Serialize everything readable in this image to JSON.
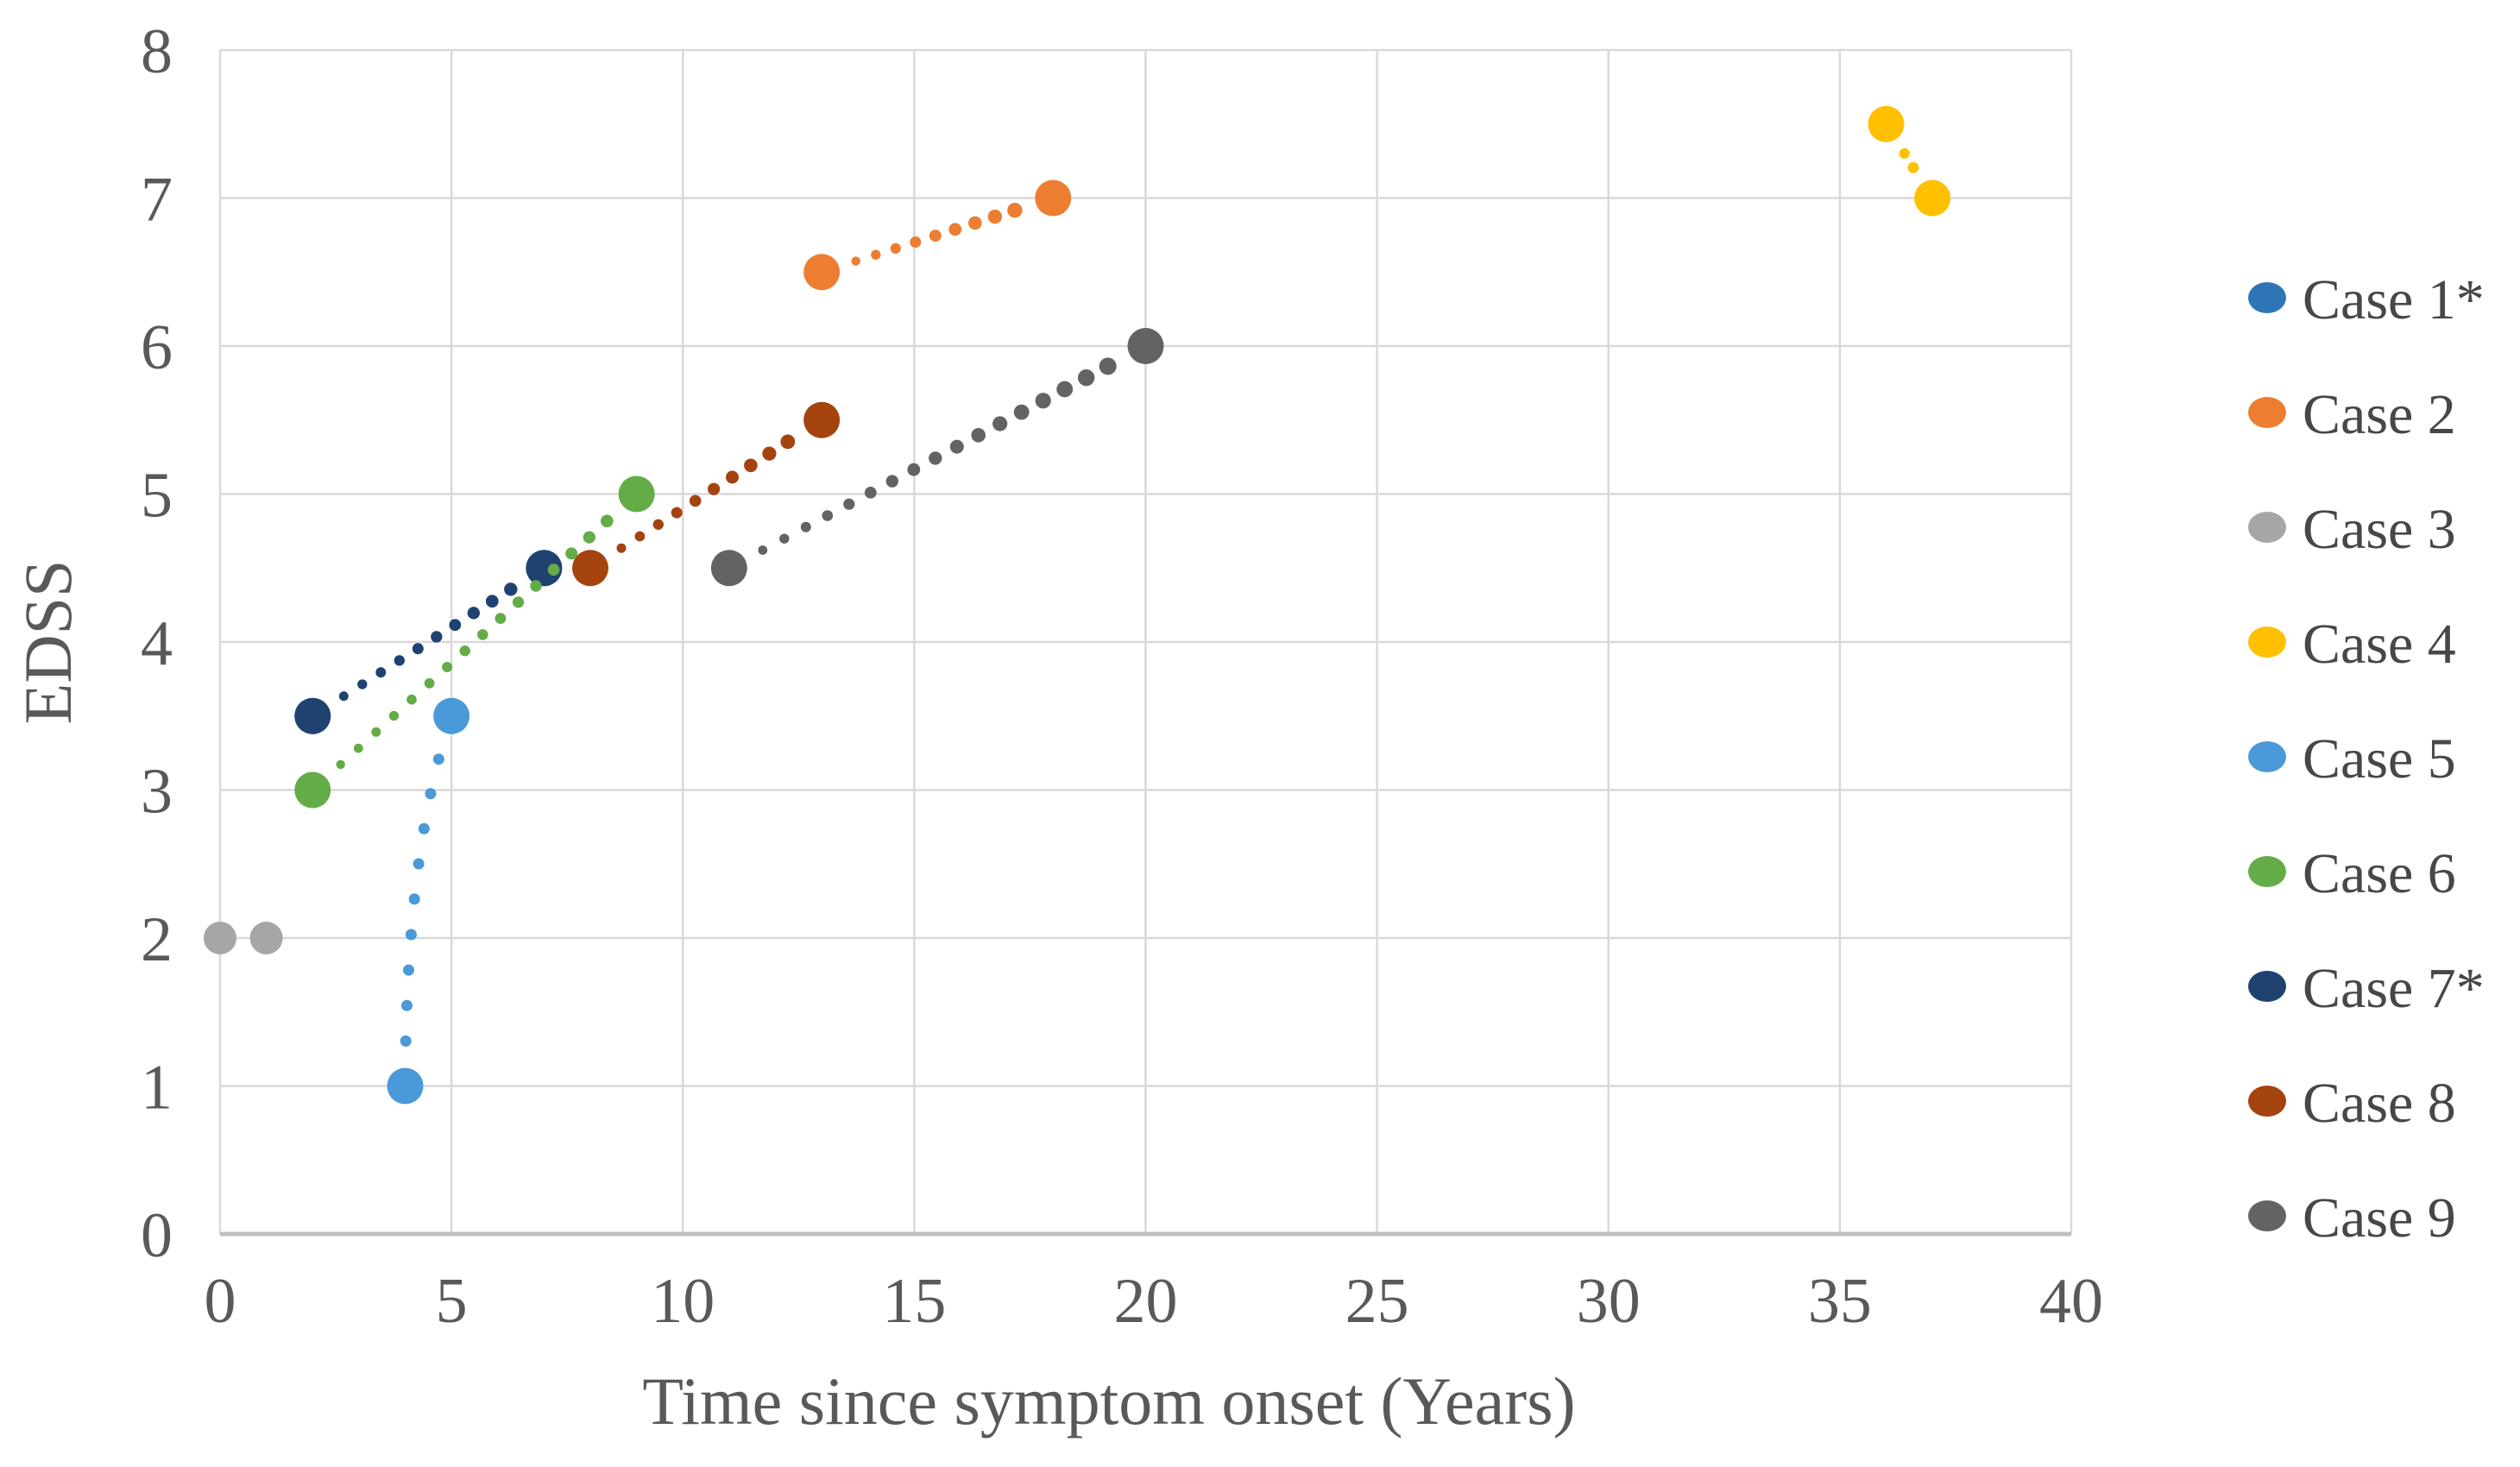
{
  "chart_data": {
    "type": "scatter",
    "title": "",
    "xlabel": "Time since symptom onset (Years)",
    "ylabel": "EDSS",
    "xlim": [
      0,
      40
    ],
    "ylim": [
      0,
      8
    ],
    "x_ticks": [
      0,
      5,
      10,
      15,
      20,
      25,
      30,
      35,
      40
    ],
    "y_ticks": [
      0,
      1,
      2,
      3,
      4,
      5,
      6,
      7,
      8
    ],
    "grid": true,
    "legend_position": "right",
    "line_style": "dotted",
    "marker": "circle",
    "series": [
      {
        "name": "Case 1*",
        "color": "#2E75B6",
        "points": [
          [
            2,
            3.5
          ],
          [
            7,
            4.5
          ]
        ],
        "note": "coincides with Case 7* and is hidden beneath it"
      },
      {
        "name": "Case 2",
        "color": "#ED7D31",
        "points": [
          [
            13,
            6.5
          ],
          [
            18,
            7
          ]
        ]
      },
      {
        "name": "Case 3",
        "color": "#A6A6A6",
        "points": [
          [
            0,
            2
          ],
          [
            1,
            2
          ]
        ]
      },
      {
        "name": "Case 4",
        "color": "#FFC000",
        "points": [
          [
            36,
            7.5
          ],
          [
            37,
            7
          ]
        ]
      },
      {
        "name": "Case 5",
        "color": "#4A99D9",
        "points": [
          [
            4,
            1
          ],
          [
            5,
            3.5
          ]
        ],
        "curve_control": [
          4.02,
          2.6
        ]
      },
      {
        "name": "Case 6",
        "color": "#64AC47",
        "points": [
          [
            2,
            3
          ],
          [
            9,
            5
          ]
        ]
      },
      {
        "name": "Case 7*",
        "color": "#1F4270",
        "points": [
          [
            2,
            3.5
          ],
          [
            7,
            4.5
          ]
        ]
      },
      {
        "name": "Case 8",
        "color": "#A5430F",
        "points": [
          [
            8,
            4.5
          ],
          [
            13,
            5.5
          ]
        ]
      },
      {
        "name": "Case 9",
        "color": "#636363",
        "points": [
          [
            11,
            4.5
          ],
          [
            20,
            6
          ]
        ]
      }
    ],
    "draw_order": [
      "Case 1*",
      "Case 2",
      "Case 3",
      "Case 4",
      "Case 5",
      "Case 7*",
      "Case 8",
      "Case 9",
      "Case 6"
    ],
    "colors": {
      "gridline": "#D9D9D9",
      "axis_line": "#BFBFBF",
      "tick_text": "#595959",
      "axis_title_text": "#595959",
      "legend_text": "#474747",
      "background": "#FFFFFF"
    }
  }
}
